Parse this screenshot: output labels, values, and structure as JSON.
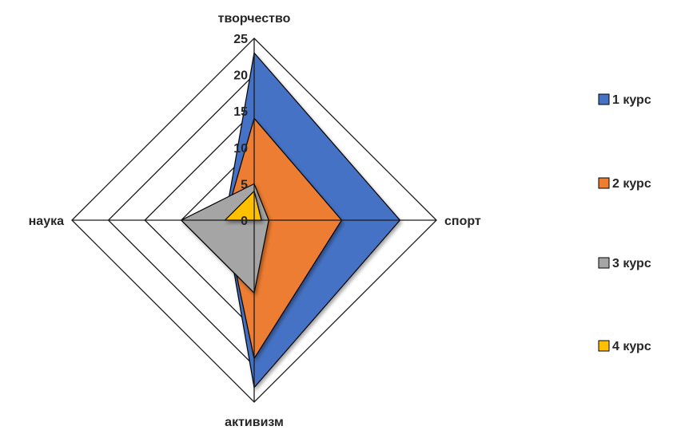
{
  "chart_data": {
    "type": "radar",
    "categories": [
      "творчество",
      "спорт",
      "активизм",
      "наука"
    ],
    "rmax": 25,
    "ticks": [
      0,
      5,
      10,
      15,
      20,
      25
    ],
    "tick_labels": [
      "0",
      "5",
      "10",
      "15",
      "20",
      "25"
    ],
    "legend_position": "right",
    "series": [
      {
        "name": "1 курс",
        "color": "#4472C4",
        "values": [
          23,
          20,
          23,
          4
        ]
      },
      {
        "name": "2 курс",
        "color": "#ED7D31",
        "values": [
          14,
          12,
          19,
          4
        ]
      },
      {
        "name": "3 курс",
        "color": "#A5A5A5",
        "values": [
          5,
          2,
          10,
          10
        ]
      },
      {
        "name": "4 курс",
        "color": "#FFC000",
        "values": [
          4,
          1,
          0,
          4
        ]
      }
    ]
  }
}
